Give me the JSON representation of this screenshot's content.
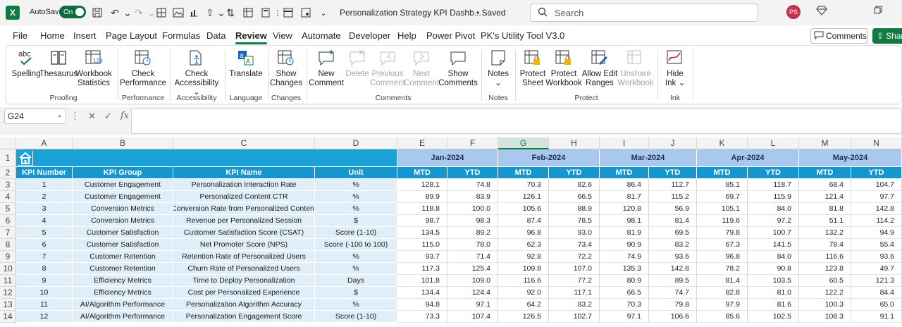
{
  "titlebar": {
    "app_letter": "X",
    "autosave_label": "AutoSave",
    "autosave_state": "On",
    "doc_title": "Personalization Strategy KPI Dashb...",
    "saved_status": "• Saved",
    "search_placeholder": "Search",
    "avatar_initials": "PS"
  },
  "menu": [
    "File",
    "Home",
    "Insert",
    "Page Layout",
    "Formulas",
    "Data",
    "Review",
    "View",
    "Automate",
    "Developer",
    "Help",
    "Power Pivot",
    "PK's Utility Tool V3.0"
  ],
  "menu_active": "Review",
  "comments_button": "Comments",
  "share_button": "Share",
  "ribbon": {
    "spelling": "Spelling",
    "thesaurus": "Thesaurus",
    "workbook_statistics": [
      "Workbook",
      "Statistics"
    ],
    "check_performance": [
      "Check",
      "Performance"
    ],
    "check_accessibility": [
      "Check",
      "Accessibility ⌄"
    ],
    "translate": "Translate",
    "show_changes": [
      "Show",
      "Changes"
    ],
    "new_comment": [
      "New",
      "Comment"
    ],
    "delete": "Delete",
    "previous_comment": [
      "Previous",
      "Comment"
    ],
    "next_comment": [
      "Next",
      "Comment"
    ],
    "show_comments": [
      "Show",
      "Comments"
    ],
    "notes": [
      "Notes",
      "⌄"
    ],
    "protect_sheet": [
      "Protect",
      "Sheet"
    ],
    "protect_workbook": [
      "Protect",
      "Workbook"
    ],
    "allow_edit_ranges": [
      "Allow Edit",
      "Ranges"
    ],
    "unshare_workbook": [
      "Unshare",
      "Workbook"
    ],
    "hide_ink": [
      "Hide",
      "Ink ⌄"
    ],
    "groups": {
      "proofing": "Proofing",
      "performance": "Performance",
      "accessibility": "Accessibility",
      "language": "Language",
      "changes": "Changes",
      "comments": "Comments",
      "notes": "Notes",
      "protect": "Protect",
      "ink": "Ink"
    }
  },
  "formula_bar": {
    "name_box": "G24",
    "fx": "fx",
    "value": ""
  },
  "columns": [
    "A",
    "B",
    "C",
    "D",
    "E",
    "F",
    "G",
    "H",
    "I",
    "J",
    "K",
    "L",
    "M",
    "N"
  ],
  "selected_column": "G",
  "rows": [
    "1",
    "2",
    "3",
    "4",
    "5",
    "6",
    "7",
    "8",
    "9",
    "10",
    "11",
    "12",
    "13",
    "14"
  ],
  "months": [
    "Jan-2024",
    "Feb-2024",
    "Mar-2024",
    "Apr-2024",
    "May-2024"
  ],
  "headers": [
    "KPI Number",
    "KPI Group",
    "KPI Name",
    "Unit"
  ],
  "mtd": "MTD",
  "ytd": "YTD",
  "table": [
    [
      "1",
      "Customer Engagement",
      "Personalization Interaction Rate",
      "%",
      "128.1",
      "74.8",
      "70.3",
      "82.6",
      "86.4",
      "112.7",
      "85.1",
      "118.7",
      "68.4",
      "104.7"
    ],
    [
      "2",
      "Customer Engagement",
      "Personalized Content CTR",
      "%",
      "89.9",
      "83.9",
      "126.1",
      "66.5",
      "81.7",
      "115.2",
      "69.7",
      "115.9",
      "121.4",
      "97.7"
    ],
    [
      "3",
      "Conversion Metrics",
      "Conversion Rate from Personalized Content",
      "%",
      "118.8",
      "100.0",
      "105.6",
      "88.9",
      "120.8",
      "56.9",
      "105.1",
      "84.0",
      "81.8",
      "142.8"
    ],
    [
      "4",
      "Conversion Metrics",
      "Revenue per Personalized Session",
      "$",
      "98.7",
      "98.3",
      "87.4",
      "78.5",
      "98.1",
      "81.4",
      "119.6",
      "97.2",
      "51.1",
      "114.2"
    ],
    [
      "5",
      "Customer Satisfaction",
      "Customer Satisfaction Score (CSAT)",
      "Score (1-10)",
      "134.5",
      "89.2",
      "96.8",
      "93.0",
      "81.9",
      "69.5",
      "79.8",
      "100.7",
      "132.2",
      "94.9"
    ],
    [
      "6",
      "Customer Satisfaction",
      "Net Promoter Score (NPS)",
      "Score (-100 to 100)",
      "115.0",
      "78.0",
      "62.3",
      "73.4",
      "90.9",
      "83.2",
      "67.3",
      "141.5",
      "78.4",
      "55.4"
    ],
    [
      "7",
      "Customer Retention",
      "Retention Rate of Personalized Users",
      "%",
      "93.7",
      "71.4",
      "92.8",
      "72.2",
      "74.9",
      "93.6",
      "96.8",
      "84.0",
      "116.6",
      "93.6"
    ],
    [
      "8",
      "Customer Retention",
      "Churn Rate of Personalized Users",
      "%",
      "117.3",
      "125.4",
      "109.8",
      "107.0",
      "135.3",
      "142.8",
      "78.2",
      "90.8",
      "123.8",
      "49.7"
    ],
    [
      "9",
      "Efficiency Metrics",
      "Time to Deploy Personalization",
      "Days",
      "101.8",
      "109.0",
      "116.6",
      "77.2",
      "80.9",
      "89.5",
      "81.4",
      "103.5",
      "60.5",
      "121.3"
    ],
    [
      "10",
      "Efficiency Metrics",
      "Cost per Personalized Experience",
      "$",
      "134.4",
      "124.4",
      "92.0",
      "117.1",
      "66.5",
      "74.7",
      "82.8",
      "81.0",
      "122.2",
      "84.4"
    ],
    [
      "11",
      "AI/Algorithm Performance",
      "Personalization Algorithm Accuracy",
      "%",
      "94.8",
      "97.1",
      "64.2",
      "83.2",
      "70.3",
      "79.8",
      "97.9",
      "81.6",
      "100.3",
      "65.0"
    ],
    [
      "12",
      "AI/Algorithm Performance",
      "Personalization Engagement Score",
      "Score (1-10)",
      "73.3",
      "107.4",
      "126.5",
      "102.7",
      "97.1",
      "106.6",
      "85.6",
      "102.5",
      "108.3",
      "91.1"
    ]
  ]
}
